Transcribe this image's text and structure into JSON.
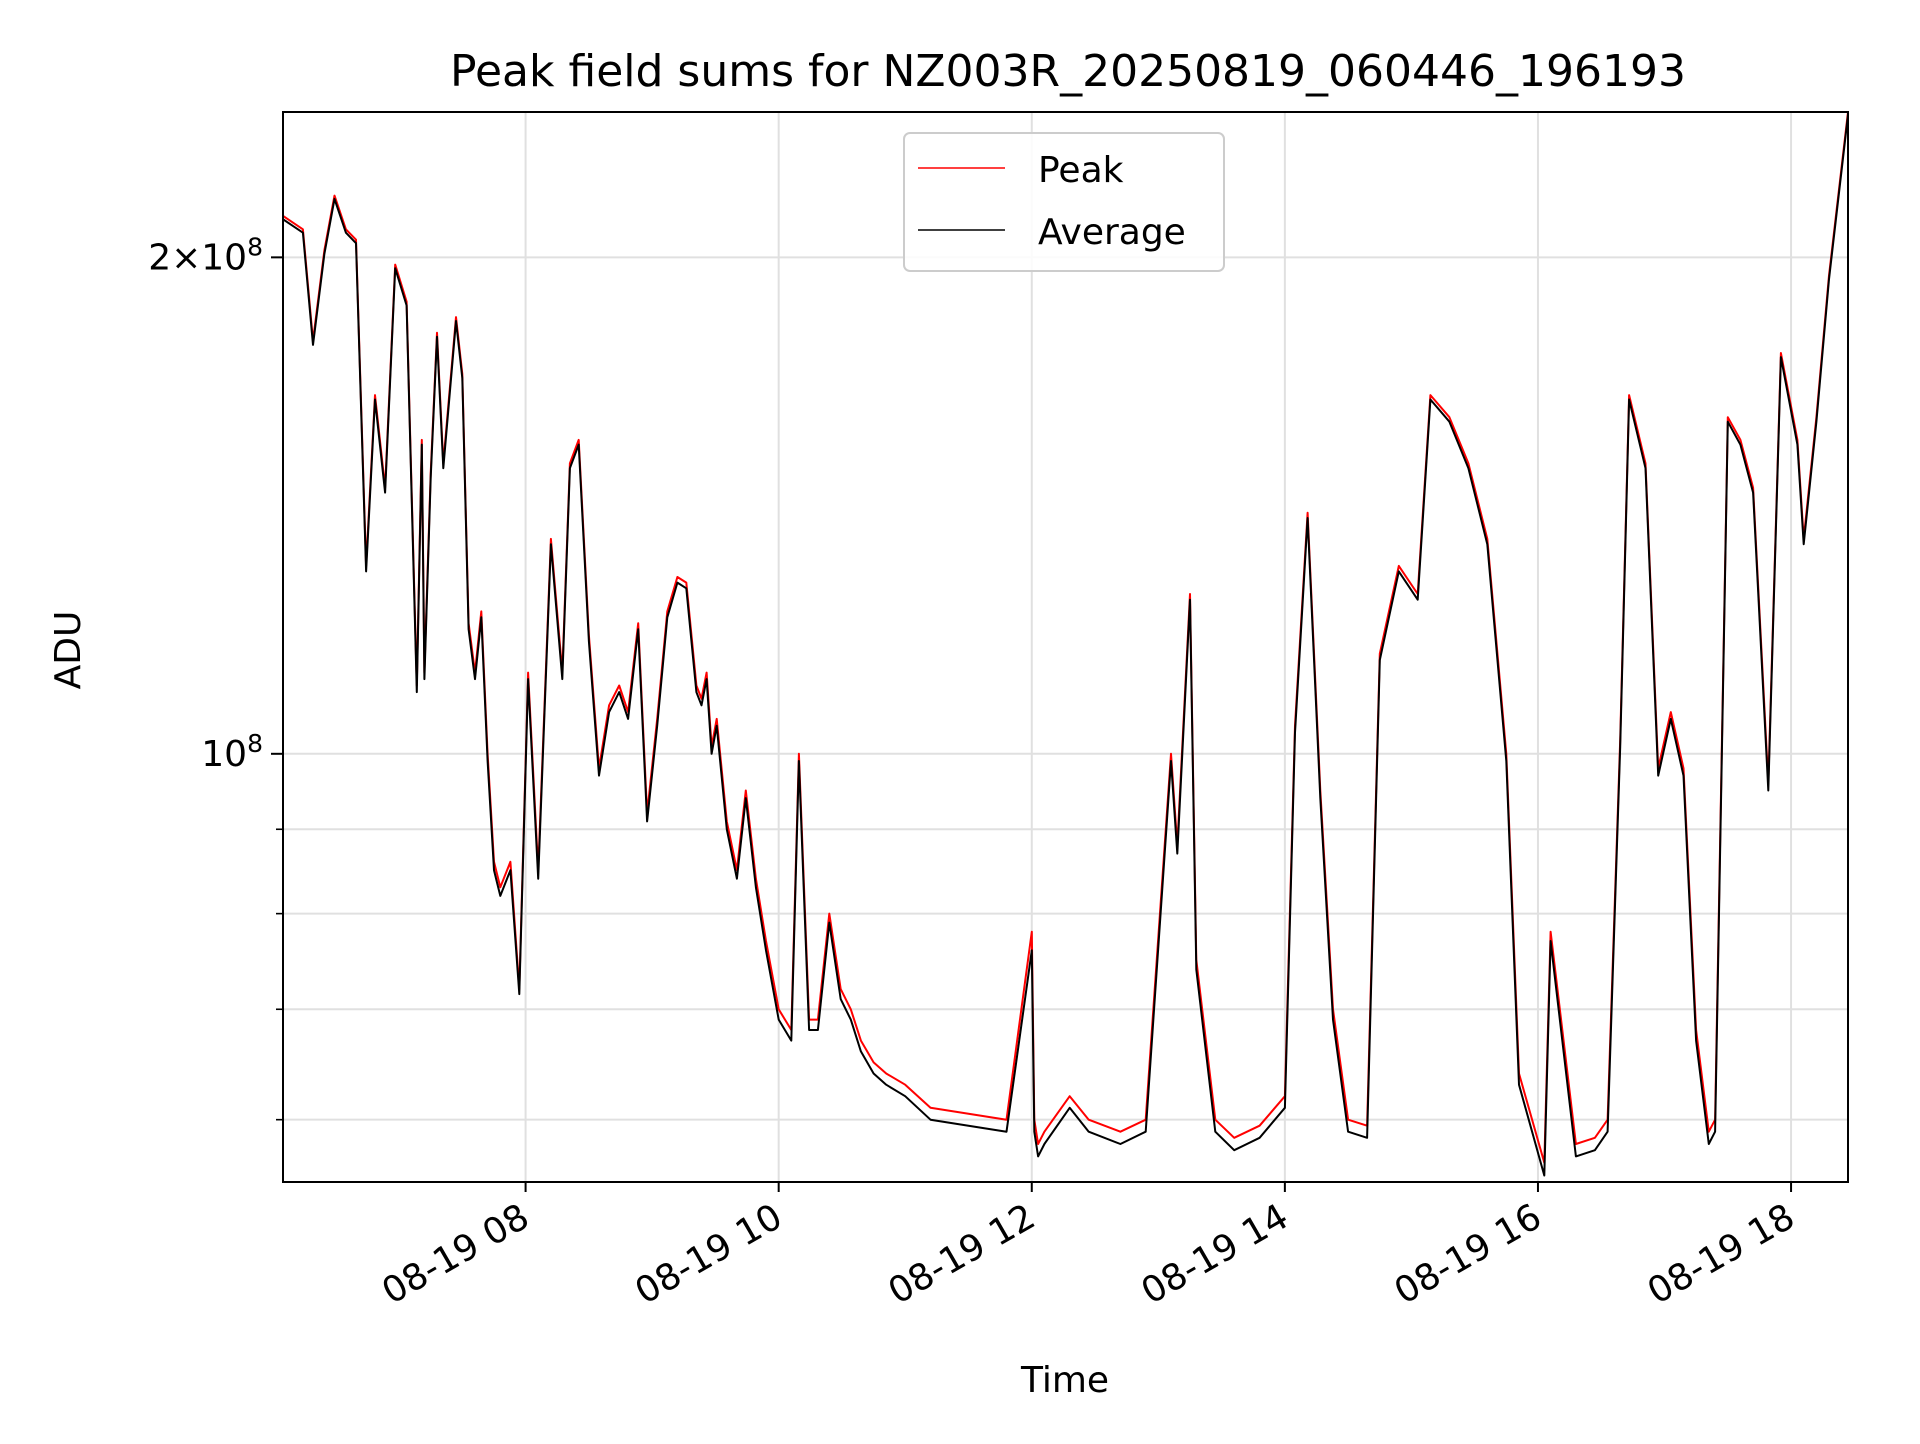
{
  "chart_data": {
    "type": "line",
    "title": "Peak field sums for NZ003R_20250819_060446_196193",
    "xlabel": "Time",
    "ylabel": "ADU",
    "x_unit": "hours (clock time, 2025-08-19)",
    "xlim": [
      6.083,
      18.45
    ],
    "ylim": [
      55000000,
      245000000
    ],
    "y_scale": "log",
    "grid": true,
    "legend_position": "top-center",
    "x_ticks": [
      {
        "value": 8,
        "label": "08-19 08"
      },
      {
        "value": 10,
        "label": "08-19 10"
      },
      {
        "value": 12,
        "label": "08-19 12"
      },
      {
        "value": 14,
        "label": "08-19 14"
      },
      {
        "value": 16,
        "label": "08-19 16"
      },
      {
        "value": 18,
        "label": "08-19 18"
      }
    ],
    "y_major_ticks": [
      {
        "value": 100000000,
        "base": "10",
        "exp": "8",
        "prefix": ""
      },
      {
        "value": 200000000,
        "base": "10",
        "exp": "8",
        "prefix": "2×"
      }
    ],
    "y_minor_ticks": [
      60000000,
      70000000,
      80000000,
      90000000
    ],
    "series": [
      {
        "name": "Peak",
        "color": "#ff0000",
        "x": [
          6.08,
          6.16,
          6.24,
          6.32,
          6.41,
          6.49,
          6.58,
          6.66,
          6.74,
          6.81,
          6.89,
          6.97,
          7.06,
          7.14,
          7.18,
          7.2,
          7.25,
          7.3,
          7.35,
          7.45,
          7.5,
          7.55,
          7.6,
          7.65,
          7.7,
          7.75,
          7.8,
          7.88,
          7.95,
          8.02,
          8.1,
          8.2,
          8.29,
          8.35,
          8.42,
          8.5,
          8.58,
          8.66,
          8.74,
          8.81,
          8.89,
          8.96,
          9.04,
          9.12,
          9.2,
          9.27,
          9.35,
          9.39,
          9.43,
          9.47,
          9.51,
          9.59,
          9.67,
          9.74,
          9.82,
          9.9,
          10.0,
          10.1,
          10.16,
          10.24,
          10.31,
          10.4,
          10.49,
          10.57,
          10.65,
          10.75,
          10.85,
          11.0,
          11.2,
          11.5,
          11.8,
          12.0,
          12.02,
          12.05,
          12.1,
          12.3,
          12.45,
          12.7,
          12.9,
          13.1,
          13.15,
          13.25,
          13.3,
          13.45,
          13.6,
          13.8,
          14.0,
          14.08,
          14.18,
          14.28,
          14.38,
          14.5,
          14.65,
          14.75,
          14.9,
          15.05,
          15.15,
          15.3,
          15.45,
          15.6,
          15.75,
          15.85,
          16.05,
          16.1,
          16.3,
          16.45,
          16.55,
          16.65,
          16.72,
          16.85,
          16.95,
          17.05,
          17.15,
          17.25,
          17.35,
          17.4,
          17.5,
          17.6,
          17.7,
          17.82,
          17.92,
          18.05,
          18.1,
          18.2,
          18.3,
          18.45
        ],
        "values": [
          212000000,
          210000000,
          208000000,
          178000000,
          202000000,
          218000000,
          208000000,
          205000000,
          130000000,
          165000000,
          145000000,
          198000000,
          188000000,
          110000000,
          155000000,
          112000000,
          148000000,
          180000000,
          150000000,
          184000000,
          170000000,
          120000000,
          112000000,
          122000000,
          100000000,
          86000000,
          83000000,
          86000000,
          72000000,
          112000000,
          85000000,
          135000000,
          112000000,
          150000000,
          155000000,
          118000000,
          98000000,
          107000000,
          110000000,
          106000000,
          120000000,
          92000000,
          105000000,
          122000000,
          128000000,
          127000000,
          110000000,
          108000000,
          112000000,
          101000000,
          105000000,
          91000000,
          85000000,
          95000000,
          84000000,
          77000000,
          70000000,
          68000000,
          100000000,
          69000000,
          69000000,
          80000000,
          72000000,
          70000000,
          67000000,
          65000000,
          64000000,
          63000000,
          61000000,
          60500000,
          60000000,
          78000000,
          60000000,
          58000000,
          59000000,
          62000000,
          60000000,
          59000000,
          60000000,
          100000000,
          88000000,
          125000000,
          75000000,
          60000000,
          58500000,
          59500000,
          62000000,
          104000000,
          140000000,
          95000000,
          70000000,
          60000000,
          59500000,
          115000000,
          130000000,
          125000000,
          165000000,
          160000000,
          150000000,
          135000000,
          100000000,
          64000000,
          56500000,
          78000000,
          58000000,
          58500000,
          60000000,
          102000000,
          165000000,
          150000000,
          98000000,
          106000000,
          98000000,
          68000000,
          59000000,
          60000000,
          160000000,
          155000000,
          145000000,
          96000000,
          175000000,
          155000000,
          135000000,
          160000000,
          195000000,
          245000000
        ]
      },
      {
        "name": "Average",
        "color": "#000000",
        "x": [
          6.08,
          6.16,
          6.24,
          6.32,
          6.41,
          6.49,
          6.58,
          6.66,
          6.74,
          6.81,
          6.89,
          6.97,
          7.06,
          7.14,
          7.18,
          7.2,
          7.25,
          7.3,
          7.35,
          7.45,
          7.5,
          7.55,
          7.6,
          7.65,
          7.7,
          7.75,
          7.8,
          7.88,
          7.95,
          8.02,
          8.1,
          8.2,
          8.29,
          8.35,
          8.42,
          8.5,
          8.58,
          8.66,
          8.74,
          8.81,
          8.89,
          8.96,
          9.04,
          9.12,
          9.2,
          9.27,
          9.35,
          9.39,
          9.43,
          9.47,
          9.51,
          9.59,
          9.67,
          9.74,
          9.82,
          9.9,
          10.0,
          10.1,
          10.16,
          10.24,
          10.31,
          10.4,
          10.49,
          10.57,
          10.65,
          10.75,
          10.85,
          11.0,
          11.2,
          11.5,
          11.8,
          12.0,
          12.02,
          12.05,
          12.1,
          12.3,
          12.45,
          12.7,
          12.9,
          13.1,
          13.15,
          13.25,
          13.3,
          13.45,
          13.6,
          13.8,
          14.0,
          14.08,
          14.18,
          14.28,
          14.38,
          14.5,
          14.65,
          14.75,
          14.9,
          15.05,
          15.15,
          15.3,
          15.45,
          15.6,
          15.75,
          15.85,
          16.05,
          16.1,
          16.3,
          16.45,
          16.55,
          16.65,
          16.72,
          16.85,
          16.95,
          17.05,
          17.15,
          17.25,
          17.35,
          17.4,
          17.5,
          17.6,
          17.7,
          17.82,
          17.92,
          18.05,
          18.1,
          18.2,
          18.3,
          18.45
        ],
        "values": [
          211000000,
          209000000,
          207000000,
          177000000,
          201000000,
          217000000,
          207000000,
          204000000,
          129000000,
          164000000,
          144000000,
          197000000,
          187000000,
          109000000,
          154000000,
          111000000,
          147000000,
          179000000,
          149000000,
          183000000,
          169000000,
          119000000,
          111000000,
          121000000,
          99000000,
          85000000,
          82000000,
          85000000,
          71500000,
          111000000,
          84000000,
          134000000,
          111000000,
          149000000,
          154000000,
          117000000,
          97000000,
          106000000,
          109000000,
          105000000,
          119000000,
          91000000,
          104000000,
          121000000,
          127000000,
          126000000,
          109000000,
          107000000,
          111000000,
          100000000,
          104000000,
          90000000,
          84000000,
          94000000,
          83000000,
          76000000,
          69000000,
          67000000,
          99000000,
          68000000,
          68000000,
          79000000,
          71000000,
          69000000,
          66000000,
          64000000,
          63000000,
          62000000,
          60000000,
          59500000,
          59000000,
          76000000,
          59000000,
          57000000,
          58000000,
          61000000,
          59000000,
          58000000,
          59000000,
          99000000,
          87000000,
          124000000,
          74000000,
          59000000,
          57500000,
          58500000,
          61000000,
          103000000,
          139000000,
          94000000,
          69000000,
          59000000,
          58500000,
          114000000,
          129000000,
          124000000,
          164000000,
          159000000,
          149000000,
          134000000,
          99000000,
          63000000,
          55500000,
          77000000,
          57000000,
          57500000,
          59000000,
          101000000,
          164000000,
          149000000,
          97000000,
          105000000,
          97000000,
          67000000,
          58000000,
          59000000,
          159000000,
          154000000,
          144000000,
          95000000,
          174000000,
          154000000,
          134000000,
          159000000,
          194000000,
          244000000
        ]
      }
    ]
  }
}
